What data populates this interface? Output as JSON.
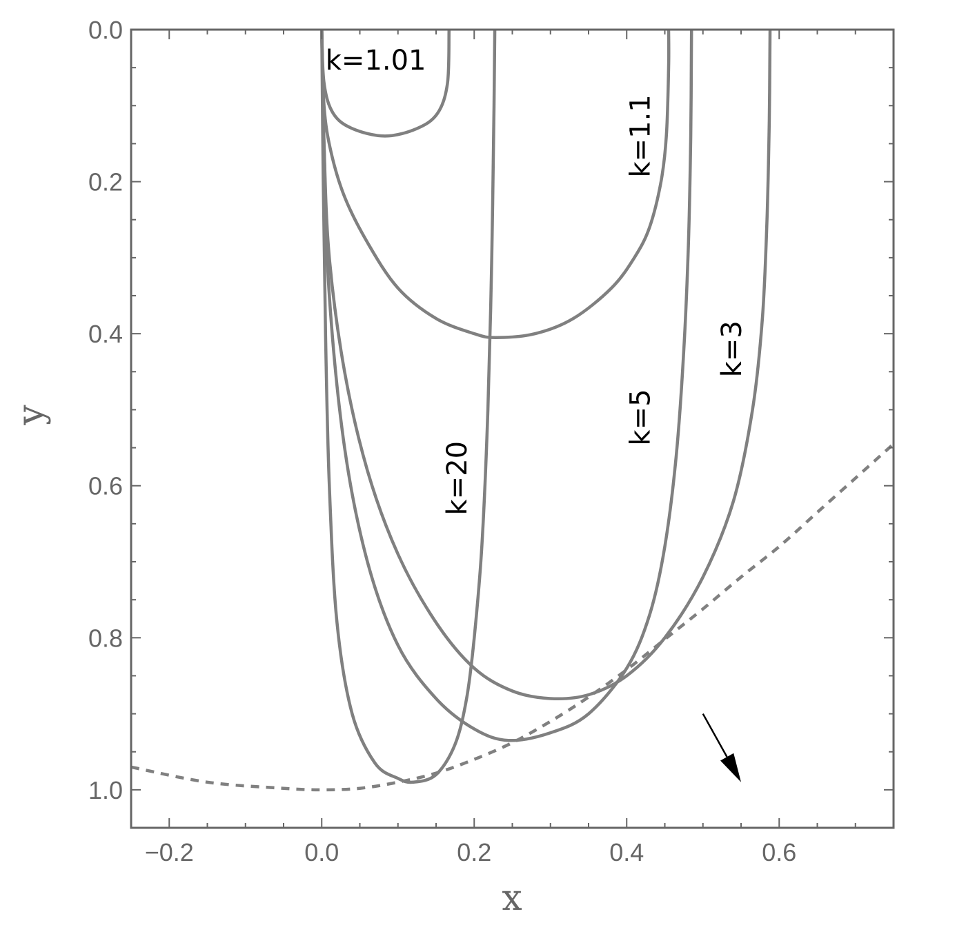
{
  "chart_data": {
    "type": "line",
    "title": "",
    "xlabel": "x",
    "ylabel": "y",
    "xlim": [
      -0.25,
      0.75
    ],
    "ylim": [
      1.05,
      0.0
    ],
    "y_inverted": true,
    "x_ticks": [
      -0.2,
      0.0,
      0.2,
      0.4,
      0.6
    ],
    "x_tick_labels": [
      "−0.2",
      "0.0",
      "0.2",
      "0.4",
      "0.6"
    ],
    "y_ticks": [
      0.0,
      0.2,
      0.4,
      0.6,
      0.8,
      1.0
    ],
    "y_tick_labels": [
      "0.0",
      "0.2",
      "0.4",
      "0.6",
      "0.8",
      "1.0"
    ],
    "grid": false,
    "line_color": "#808080",
    "series": [
      {
        "name": "k=1.01",
        "values": [
          [
            0.0,
            0.0
          ],
          [
            0.003,
            0.07
          ],
          [
            0.015,
            0.11
          ],
          [
            0.04,
            0.13
          ],
          [
            0.083,
            0.14
          ],
          [
            0.125,
            0.13
          ],
          [
            0.152,
            0.11
          ],
          [
            0.165,
            0.07
          ],
          [
            0.167,
            0.0
          ]
        ]
      },
      {
        "name": "k=1.1",
        "values": [
          [
            0.0,
            0.0
          ],
          [
            0.003,
            0.1
          ],
          [
            0.012,
            0.16
          ],
          [
            0.03,
            0.22
          ],
          [
            0.06,
            0.28
          ],
          [
            0.1,
            0.34
          ],
          [
            0.15,
            0.38
          ],
          [
            0.2,
            0.4
          ],
          [
            0.228,
            0.405
          ],
          [
            0.28,
            0.4
          ],
          [
            0.33,
            0.38
          ],
          [
            0.38,
            0.34
          ],
          [
            0.41,
            0.3
          ],
          [
            0.43,
            0.26
          ],
          [
            0.445,
            0.2
          ],
          [
            0.452,
            0.14
          ],
          [
            0.455,
            0.05
          ],
          [
            0.455,
            0.0
          ]
        ]
      },
      {
        "name": "k=3",
        "values": [
          [
            0.0,
            0.0
          ],
          [
            0.003,
            0.15
          ],
          [
            0.01,
            0.3
          ],
          [
            0.03,
            0.45
          ],
          [
            0.06,
            0.58
          ],
          [
            0.1,
            0.69
          ],
          [
            0.15,
            0.78
          ],
          [
            0.2,
            0.84
          ],
          [
            0.25,
            0.87
          ],
          [
            0.3,
            0.88
          ],
          [
            0.35,
            0.875
          ],
          [
            0.4,
            0.85
          ],
          [
            0.45,
            0.8
          ],
          [
            0.5,
            0.72
          ],
          [
            0.54,
            0.62
          ],
          [
            0.565,
            0.5
          ],
          [
            0.578,
            0.38
          ],
          [
            0.584,
            0.25
          ],
          [
            0.587,
            0.12
          ],
          [
            0.588,
            0.0
          ]
        ]
      },
      {
        "name": "k=5",
        "values": [
          [
            0.0,
            0.0
          ],
          [
            0.003,
            0.15
          ],
          [
            0.01,
            0.35
          ],
          [
            0.03,
            0.55
          ],
          [
            0.06,
            0.7
          ],
          [
            0.1,
            0.81
          ],
          [
            0.15,
            0.88
          ],
          [
            0.2,
            0.92
          ],
          [
            0.245,
            0.935
          ],
          [
            0.3,
            0.925
          ],
          [
            0.35,
            0.9
          ],
          [
            0.4,
            0.84
          ],
          [
            0.43,
            0.77
          ],
          [
            0.45,
            0.68
          ],
          [
            0.465,
            0.56
          ],
          [
            0.475,
            0.42
          ],
          [
            0.481,
            0.28
          ],
          [
            0.484,
            0.14
          ],
          [
            0.485,
            0.0
          ]
        ]
      },
      {
        "name": "k=20",
        "values": [
          [
            0.0,
            0.0
          ],
          [
            0.002,
            0.2
          ],
          [
            0.005,
            0.4
          ],
          [
            0.01,
            0.6
          ],
          [
            0.02,
            0.78
          ],
          [
            0.04,
            0.9
          ],
          [
            0.07,
            0.965
          ],
          [
            0.1,
            0.985
          ],
          [
            0.12,
            0.99
          ],
          [
            0.15,
            0.98
          ],
          [
            0.175,
            0.94
          ],
          [
            0.19,
            0.88
          ],
          [
            0.2,
            0.8
          ],
          [
            0.21,
            0.68
          ],
          [
            0.218,
            0.5
          ],
          [
            0.223,
            0.3
          ],
          [
            0.226,
            0.1
          ],
          [
            0.227,
            0.0
          ]
        ]
      },
      {
        "name": "",
        "style": "dashed",
        "values": [
          [
            -0.25,
            0.97
          ],
          [
            -0.15,
            0.99
          ],
          [
            -0.05,
            0.998
          ],
          [
            0.0,
            1.0
          ],
          [
            0.05,
            0.998
          ],
          [
            0.1,
            0.99
          ],
          [
            0.15,
            0.978
          ],
          [
            0.2,
            0.96
          ],
          [
            0.25,
            0.938
          ],
          [
            0.3,
            0.91
          ],
          [
            0.35,
            0.878
          ],
          [
            0.4,
            0.842
          ],
          [
            0.45,
            0.802
          ],
          [
            0.5,
            0.762
          ],
          [
            0.55,
            0.72
          ],
          [
            0.6,
            0.68
          ],
          [
            0.65,
            0.635
          ],
          [
            0.7,
            0.59
          ],
          [
            0.75,
            0.545
          ]
        ]
      }
    ],
    "annotations": [
      {
        "text": "k=1.01",
        "x": 0.005,
        "y": 0.04,
        "rotation": 0
      },
      {
        "text": "k=1.1",
        "x": 0.43,
        "y": 0.14,
        "rotation": -90
      },
      {
        "text": "k=20",
        "x": 0.19,
        "y": 0.59,
        "rotation": -90
      },
      {
        "text": "k=5",
        "x": 0.43,
        "y": 0.51,
        "rotation": -90
      },
      {
        "text": "k=3",
        "x": 0.55,
        "y": 0.42,
        "rotation": -90
      }
    ],
    "arrow": {
      "from": [
        0.5,
        0.9
      ],
      "to": [
        0.55,
        0.99
      ]
    }
  }
}
